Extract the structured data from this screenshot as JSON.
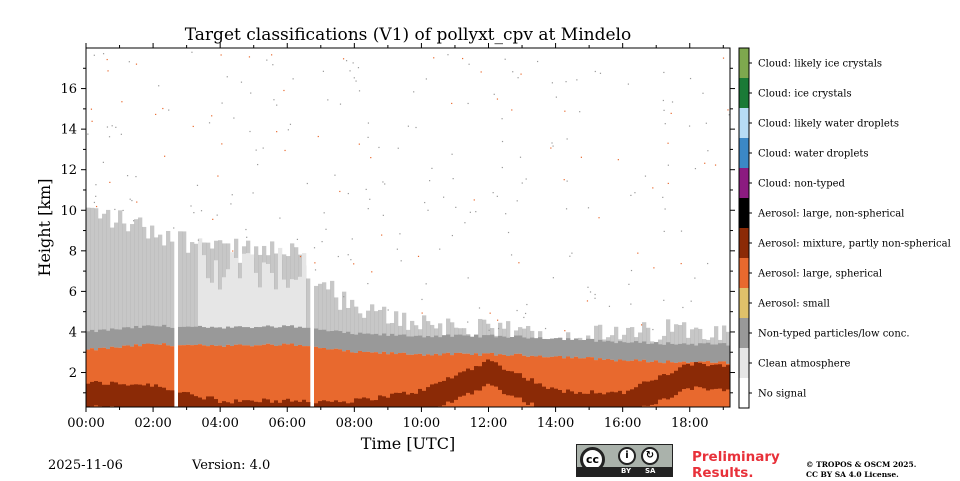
{
  "chart_data": {
    "type": "heatmap",
    "title": "Target classifications (V1) of pollyxt_cpv at Mindelo",
    "xlabel": "Time [UTC]",
    "ylabel": "Height [km]",
    "xlim_hours": [
      0,
      19.2
    ],
    "ylim_km": [
      0.3,
      18.0
    ],
    "x_ticks": [
      "00:00",
      "02:00",
      "04:00",
      "06:00",
      "08:00",
      "10:00",
      "12:00",
      "14:00",
      "16:00",
      "18:00"
    ],
    "x_tick_values": [
      0,
      2,
      4,
      6,
      8,
      10,
      12,
      14,
      16,
      18
    ],
    "y_ticks": [
      "2",
      "4",
      "6",
      "8",
      "10",
      "12",
      "14",
      "16"
    ],
    "y_tick_values": [
      2,
      4,
      6,
      8,
      10,
      12,
      14,
      16
    ],
    "classes": [
      {
        "code": 0,
        "label": "No signal",
        "color": "#ffffff"
      },
      {
        "code": 1,
        "label": "Clean atmosphere",
        "color": "#e6e6e6"
      },
      {
        "code": 2,
        "label": "Non-typed particles/low conc.",
        "color": "#999999"
      },
      {
        "code": 3,
        "label": "Aerosol: small",
        "color": "#e0c16a"
      },
      {
        "code": 4,
        "label": "Aerosol: large, spherical",
        "color": "#e8692e"
      },
      {
        "code": 5,
        "label": "Aerosol: mixture, partly non-spherical",
        "color": "#8b2a06"
      },
      {
        "code": 6,
        "label": "Aerosol: large, non-spherical",
        "color": "#000000"
      },
      {
        "code": 7,
        "label": "Cloud: non-typed",
        "color": "#8b1b80"
      },
      {
        "code": 8,
        "label": "Cloud: water droplets",
        "color": "#3b88c6"
      },
      {
        "code": 9,
        "label": "Cloud: likely water droplets",
        "color": "#b7dcf5"
      },
      {
        "code": 10,
        "label": "Cloud: ice crystals",
        "color": "#1a7a36"
      },
      {
        "code": 11,
        "label": "Cloud: likely ice crystals",
        "color": "#7ea84e"
      }
    ],
    "layers_by_time": [
      {
        "time_h": 0.0,
        "aerosol_top_km": 3.1,
        "mixture_top_km": 1.5,
        "lowconc_top_km": 10.0
      },
      {
        "time_h": 2.0,
        "aerosol_top_km": 3.4,
        "mixture_top_km": 1.4,
        "lowconc_top_km": 9.0
      },
      {
        "time_h": 4.0,
        "aerosol_top_km": 3.3,
        "mixture_top_km": 0.6,
        "lowconc_top_km": 8.0
      },
      {
        "time_h": 6.0,
        "aerosol_top_km": 3.4,
        "mixture_top_km": 0.6,
        "lowconc_top_km": 8.0
      },
      {
        "time_h": 8.0,
        "aerosol_top_km": 3.0,
        "mixture_top_km": 0.6,
        "lowconc_top_km": 5.0
      },
      {
        "time_h": 10.0,
        "aerosol_top_km": 2.9,
        "mixture_top_km": 1.1,
        "lowconc_top_km": 4.5
      },
      {
        "time_h": 12.0,
        "aerosol_top_km": 2.9,
        "mixture_top_km": 2.6,
        "lowconc_top_km": 4.0
      },
      {
        "time_h": 14.0,
        "aerosol_top_km": 2.8,
        "mixture_top_km": 1.1,
        "lowconc_top_km": 3.8
      },
      {
        "time_h": 16.0,
        "aerosol_top_km": 2.6,
        "mixture_top_km": 1.0,
        "lowconc_top_km": 3.8
      },
      {
        "time_h": 18.0,
        "aerosol_top_km": 2.5,
        "mixture_top_km": 2.4,
        "lowconc_top_km": 4.2
      },
      {
        "time_h": 19.2,
        "aerosol_top_km": 2.5,
        "mixture_top_km": 2.4,
        "lowconc_top_km": 4.2
      }
    ],
    "data_gaps_hours": [
      [
        2.6,
        2.75
      ],
      [
        6.65,
        6.75
      ]
    ],
    "clean_atmosphere_periods_hours": [
      [
        3.3,
        6.6
      ]
    ]
  },
  "footer": {
    "date": "2025-11-06",
    "version": "Version: 4.0",
    "preliminary_line1": "Preliminary",
    "preliminary_line2": "Results.",
    "copyright_line1": "© TROPOS & OSCM 2025.",
    "copyright_line2": "CC BY SA 4.0 License.",
    "license_badge": {
      "cc": "cc",
      "by": "BY",
      "sa": "SA"
    }
  }
}
